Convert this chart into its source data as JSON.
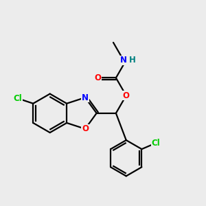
{
  "background_color": "#ececec",
  "bond_color": "#000000",
  "atom_colors": {
    "N": "#0000ff",
    "O": "#ff0000",
    "Cl": "#00cc00",
    "H": "#008080",
    "C": "#000000"
  },
  "figsize": [
    3.0,
    3.0
  ],
  "dpi": 100
}
